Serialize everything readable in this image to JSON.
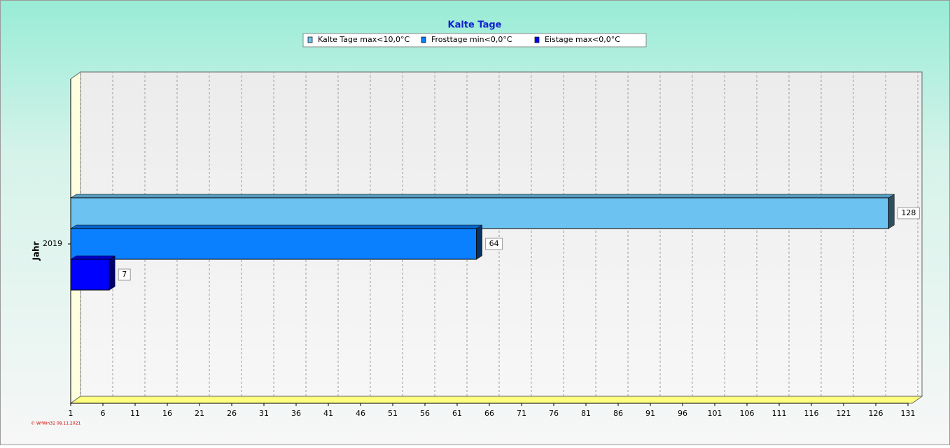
{
  "chart_data": {
    "type": "bar",
    "orientation": "horizontal",
    "title": "Kalte Tage",
    "y_label": "Jahr",
    "categories": [
      "2019"
    ],
    "series": [
      {
        "name": "Kalte Tage max<10,0°C",
        "color": "#6cc2f0",
        "values": [
          128
        ]
      },
      {
        "name": "Frosttage min<0,0°C",
        "color": "#0a80ff",
        "values": [
          64
        ]
      },
      {
        "name": "Eistage max<0,0°C",
        "color": "#0000ff",
        "values": [
          7
        ]
      }
    ],
    "xlim": [
      1,
      131
    ],
    "xticks": [
      1,
      6,
      11,
      16,
      21,
      26,
      31,
      36,
      41,
      46,
      51,
      56,
      61,
      66,
      71,
      76,
      81,
      86,
      91,
      96,
      101,
      106,
      111,
      116,
      121,
      126,
      131
    ],
    "grid": true,
    "legend": "top",
    "footnote": "© WrWin32  08.11.2021"
  }
}
